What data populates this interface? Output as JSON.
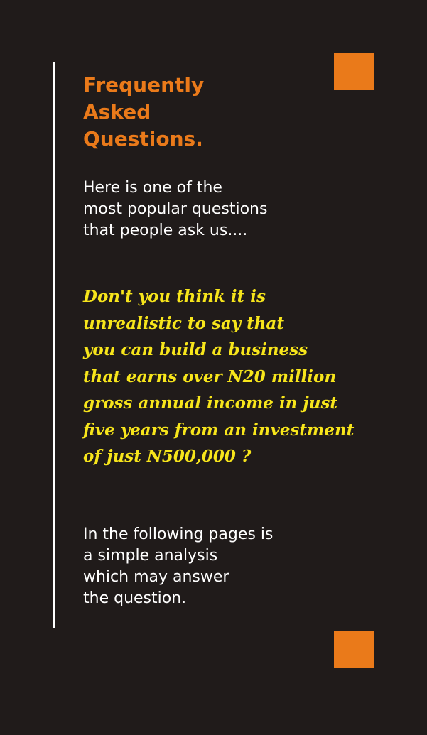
{
  "title_lines": [
    "Frequently",
    "Asked",
    "Questions."
  ],
  "intro_lines": [
    "Here is one of the",
    "most popular questions",
    "that people ask us...."
  ],
  "question_lines": [
    "Don't you think it is",
    "unrealistic to say that",
    "you can build a business",
    "that earns over N20 million",
    "gross annual income in just",
    "five years from an investment",
    "of just N500,000 ?"
  ],
  "outro_lines": [
    "In the following pages is",
    "a simple analysis",
    "which may answer",
    "the question."
  ],
  "colors": {
    "background": "#201b1a",
    "accent_orange": "#ea7a1a",
    "question_yellow": "#f7e51b",
    "body_text": "#ffffff"
  }
}
